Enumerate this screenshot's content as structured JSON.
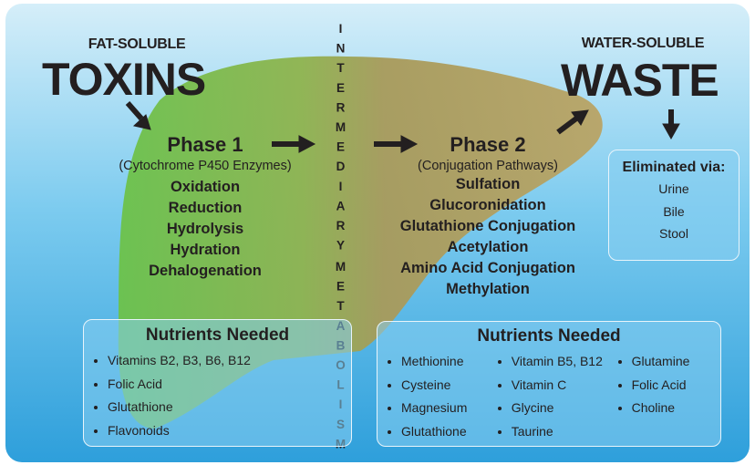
{
  "left": {
    "label": "FAT-SOLUBLE",
    "title": "TOXINS"
  },
  "right": {
    "label": "WATER-SOLUBLE",
    "title": "WASTE"
  },
  "center": {
    "words": [
      "INTERMEDIARY",
      "METABOLISM"
    ]
  },
  "phase1": {
    "title": "Phase 1",
    "subtitle": "(Cytochrome P450 Enzymes)",
    "items": [
      "Oxidation",
      "Reduction",
      "Hydrolysis",
      "Hydration",
      "Dehalogenation"
    ]
  },
  "phase2": {
    "title": "Phase 2",
    "subtitle": "(Conjugation Pathways)",
    "items": [
      "Sulfation",
      "Glucoronidation",
      "Glutathione Conjugation",
      "Acetylation",
      "Amino Acid Conjugation",
      "Methylation"
    ]
  },
  "elimination": {
    "title": "Eliminated via:",
    "items": [
      "Urine",
      "Bile",
      "Stool"
    ]
  },
  "nutrients1": {
    "title": "Nutrients Needed",
    "items": [
      "Vitamins B2, B3, B6, B12",
      "Folic Acid",
      "Glutathione",
      "Flavonoids"
    ]
  },
  "nutrients2": {
    "title": "Nutrients Needed",
    "columns": [
      [
        "Methionine",
        "Cysteine",
        "Magnesium",
        "Glutathione"
      ],
      [
        "Vitamin B5, B12",
        "Vitamin C",
        "Glycine",
        "Taurine"
      ],
      [
        "Glutamine",
        "Folic Acid",
        "Choline"
      ]
    ]
  }
}
